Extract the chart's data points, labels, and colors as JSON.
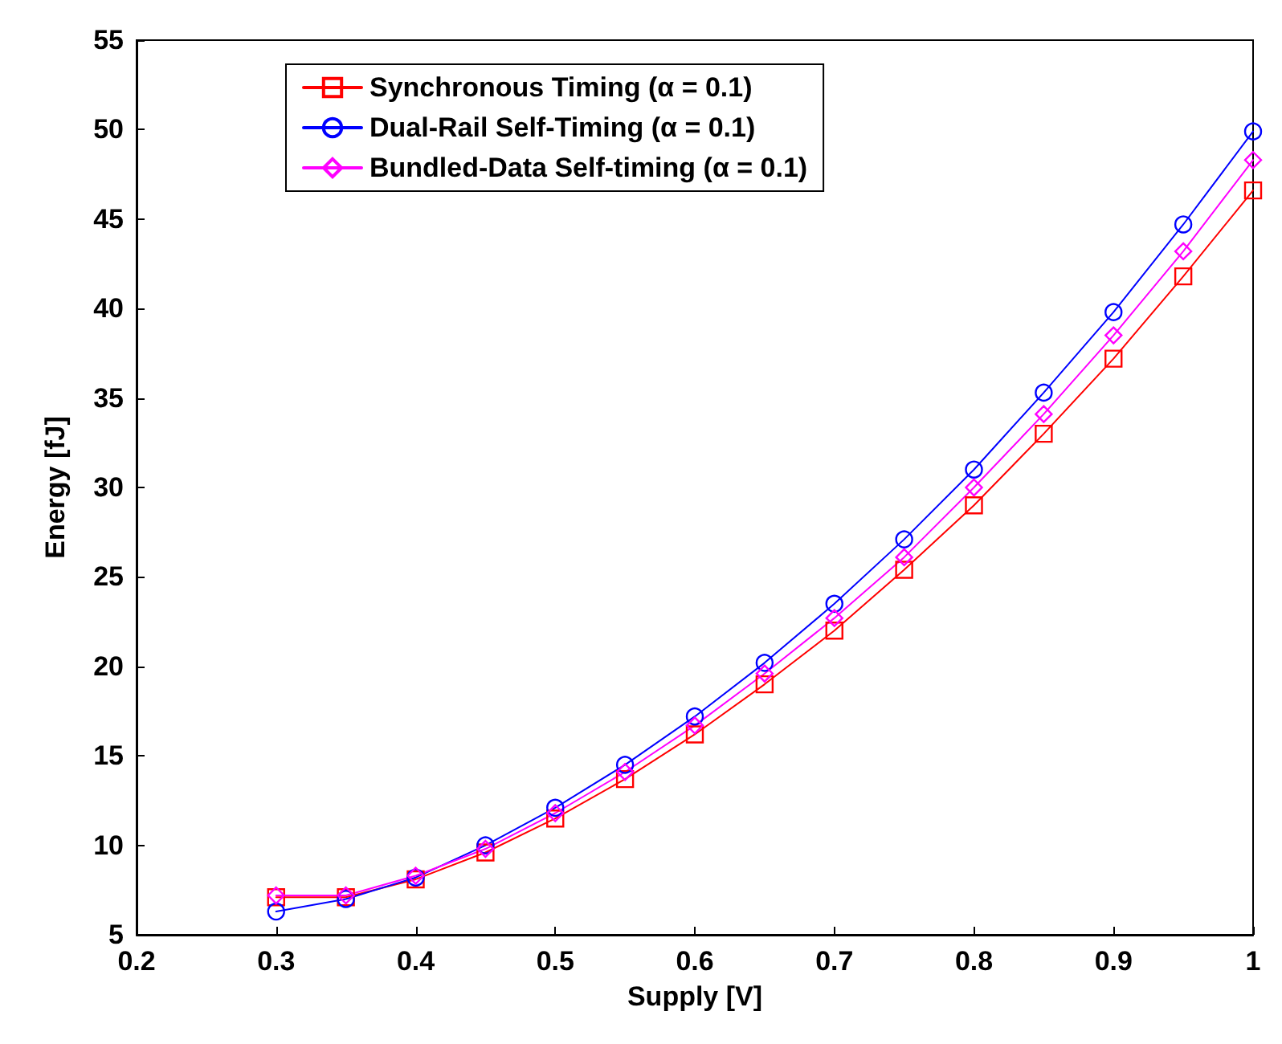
{
  "chart_data": {
    "type": "line",
    "xlabel": "Supply [V]",
    "ylabel": "Energy [fJ]",
    "x": [
      0.3,
      0.35,
      0.4,
      0.45,
      0.5,
      0.55,
      0.6,
      0.65,
      0.7,
      0.75,
      0.8,
      0.85,
      0.9,
      0.95,
      1.0
    ],
    "series": [
      {
        "name": "Synchronous Timing (α = 0.1)",
        "color": "#ff0000",
        "marker": "square",
        "values": [
          7.1,
          7.1,
          8.1,
          9.6,
          11.5,
          13.7,
          16.2,
          19.0,
          22.0,
          25.4,
          29.0,
          33.0,
          37.2,
          41.8,
          46.6
        ]
      },
      {
        "name": "Dual-Rail Self-Timing (α = 0.1)",
        "color": "#0000ff",
        "marker": "circle",
        "values": [
          6.3,
          7.0,
          8.2,
          10.0,
          12.1,
          14.5,
          17.2,
          20.2,
          23.5,
          27.1,
          31.0,
          35.3,
          39.8,
          44.7,
          49.9
        ]
      },
      {
        "name": "Bundled-Data Self-timing (α = 0.1)",
        "color": "#ff00ff",
        "marker": "diamond",
        "values": [
          7.2,
          7.2,
          8.3,
          9.8,
          11.8,
          14.1,
          16.7,
          19.6,
          22.7,
          26.1,
          30.0,
          34.1,
          38.5,
          43.2,
          48.3
        ]
      }
    ],
    "xlim": [
      0.2,
      1.0
    ],
    "xticks": [
      0.2,
      0.3,
      0.4,
      0.5,
      0.6,
      0.7,
      0.8,
      0.9,
      1
    ],
    "ylim": [
      5,
      55
    ],
    "yticks": [
      5,
      10,
      15,
      20,
      25,
      30,
      35,
      40,
      45,
      50,
      55
    ],
    "grid": false,
    "legend": "top left",
    "line_style": "solid"
  }
}
